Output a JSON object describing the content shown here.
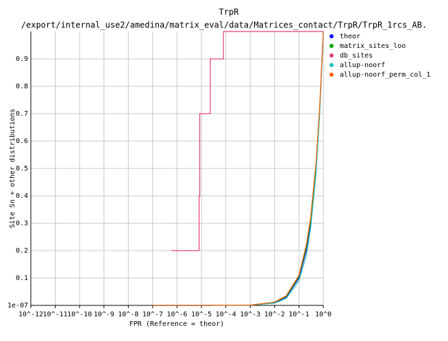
{
  "chart_data": {
    "type": "line",
    "title": "TrpR",
    "subtitle": "/export/internal_use2/amedina/matrix_eval/data/Matrices_contact/TrpR/TrpR_1rcs_AB.",
    "x_label": "FPR (Reference = theor)",
    "y_label": "Site Sn + other distributions",
    "x_scale": "log",
    "grid": true,
    "legend_position": "right",
    "xlim": [
      1e-12,
      1
    ],
    "ylim": [
      1e-07,
      1
    ],
    "xticks": [
      {
        "value": 1e-12,
        "label": "10^-12"
      },
      {
        "value": 1e-11,
        "label": "10^-11"
      },
      {
        "value": 1e-10,
        "label": "10^-10"
      },
      {
        "value": 1e-09,
        "label": "10^-9"
      },
      {
        "value": 1e-08,
        "label": "10^-8"
      },
      {
        "value": 1e-07,
        "label": "10^-7"
      },
      {
        "value": 1e-06,
        "label": "10^-6"
      },
      {
        "value": 1e-05,
        "label": "10^-5"
      },
      {
        "value": 0.0001,
        "label": "10^-4"
      },
      {
        "value": 0.001,
        "label": "10^-3"
      },
      {
        "value": 0.01,
        "label": "10^-2"
      },
      {
        "value": 0.1,
        "label": "10^-1"
      },
      {
        "value": 1,
        "label": "10^0"
      }
    ],
    "yticks": [
      {
        "value": 1e-07,
        "label": "1e-07"
      },
      0.1,
      0.2,
      0.3,
      0.4,
      0.5,
      0.6,
      0.7,
      0.8,
      0.9
    ],
    "series": [
      {
        "name": "theor",
        "color": "#0000ff",
        "x": [
          1e-07,
          1e-05,
          0.001,
          0.01,
          0.03,
          0.1,
          0.2,
          0.3,
          0.5,
          0.7,
          1
        ],
        "values": [
          1e-07,
          1e-05,
          0.001,
          0.01,
          0.03,
          0.1,
          0.2,
          0.3,
          0.5,
          0.7,
          1
        ]
      },
      {
        "name": "matrix_sites_loo",
        "color": "#00a000",
        "x": [
          1e-07,
          1e-05,
          0.001,
          0.01,
          0.03,
          0.1,
          0.2,
          0.3,
          0.5,
          0.7,
          1
        ],
        "values": [
          1e-07,
          1e-05,
          0.001,
          0.011,
          0.032,
          0.105,
          0.21,
          0.31,
          0.51,
          0.71,
          1
        ]
      },
      {
        "name": "db_sites",
        "color": "#e0407a",
        "x": [
          5.8e-07,
          8e-06,
          8e-06,
          8.5e-06,
          8.5e-06,
          2.3e-05,
          2.3e-05,
          8e-05,
          8e-05,
          1
        ],
        "values": [
          0.2,
          0.2,
          0.4,
          0.4,
          0.7,
          0.7,
          0.9,
          0.9,
          1,
          1
        ]
      },
      {
        "name": "allup-noorf",
        "color": "#20c0c0",
        "x": [
          1e-07,
          1e-05,
          0.001,
          0.01,
          0.03,
          0.1,
          0.2,
          0.3,
          0.5,
          0.7,
          1
        ],
        "values": [
          1e-07,
          1e-05,
          0.0008,
          0.008,
          0.025,
          0.09,
          0.18,
          0.28,
          0.48,
          0.69,
          1
        ]
      },
      {
        "name": "allup-noorf_perm_col_1",
        "color": "#ff6000",
        "x": [
          1e-07,
          1e-05,
          0.001,
          0.01,
          0.03,
          0.1,
          0.2,
          0.3,
          0.5,
          0.7,
          1
        ],
        "values": [
          1e-07,
          1e-05,
          0.0012,
          0.012,
          0.035,
          0.11,
          0.22,
          0.32,
          0.52,
          0.72,
          1
        ]
      }
    ]
  }
}
